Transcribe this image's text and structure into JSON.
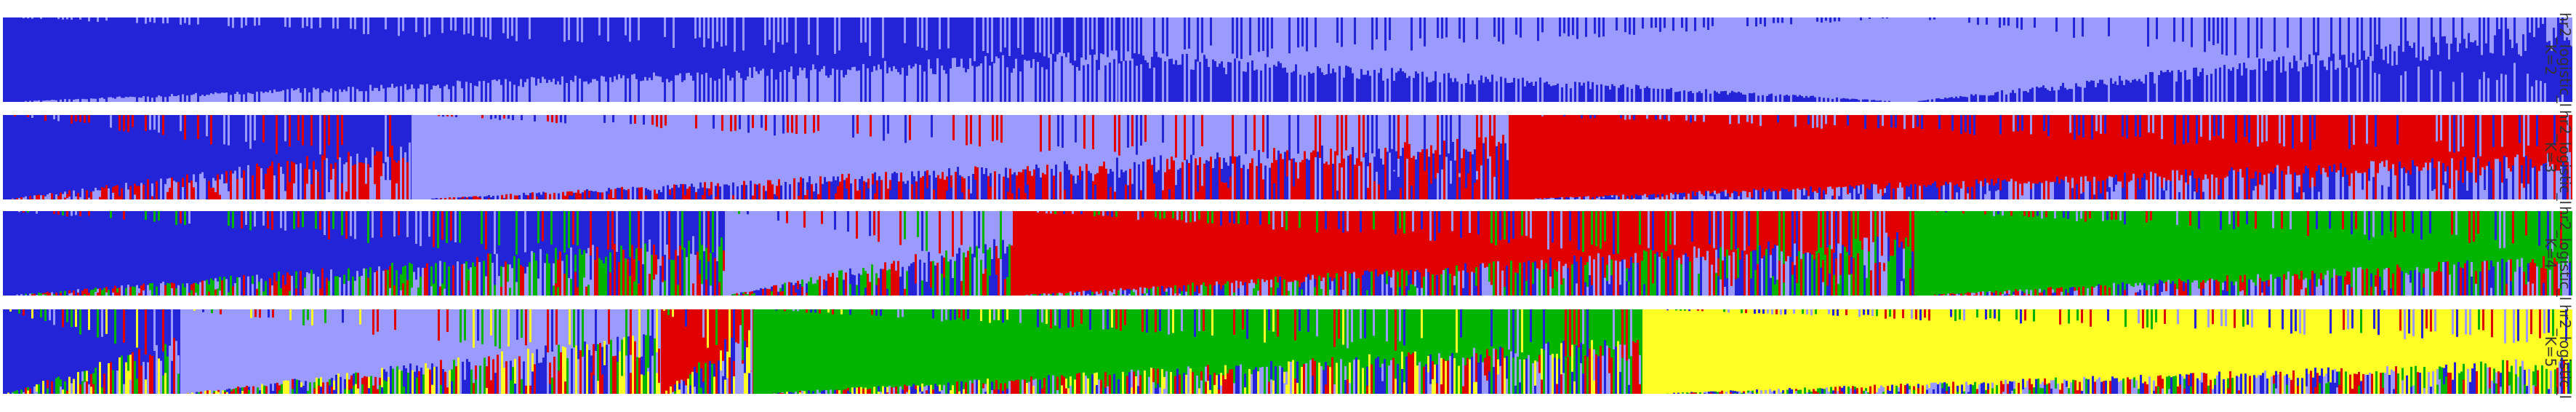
{
  "chart_data": [
    {
      "type": "structure-barplot",
      "label_lines": [
        "hr2_logistic_l",
        "K=2"
      ],
      "n_individuals": 3543,
      "cluster_colors": [
        "#2323d8",
        "#9a9aff"
      ],
      "sorted_blocks": [
        {
          "dominant": 0,
          "fraction": 0.434,
          "cross_start": 0.0,
          "cross_end": 0.5
        },
        {
          "dominant": 1,
          "fraction": 0.307,
          "cross_start": 0.5,
          "cross_end": 0.0
        },
        {
          "dominant": 1,
          "fraction": 0.259,
          "cross_start": 0.0,
          "cross_end": 0.78
        }
      ]
    },
    {
      "type": "structure-barplot",
      "label_lines": [
        "hr2_logistic_l",
        "K=3"
      ],
      "n_individuals": 3543,
      "cluster_colors": [
        "#2323d8",
        "#9a9aff",
        "#e00000"
      ],
      "sorted_blocks": [
        {
          "dominant": 0,
          "fraction": 0.159,
          "cross_start": 0.0,
          "cross_end": 0.55
        },
        {
          "dominant": 1,
          "fraction": 0.427,
          "cross_start": 0.0,
          "cross_end": 0.62
        },
        {
          "dominant": 2,
          "fraction": 0.414,
          "cross_start": 0.0,
          "cross_end": 0.45
        }
      ]
    },
    {
      "type": "structure-barplot",
      "label_lines": [
        "hr2_logistic_l",
        "K=4"
      ],
      "n_individuals": 3543,
      "cluster_colors": [
        "#2323d8",
        "#9a9aff",
        "#e00000",
        "#00b400"
      ],
      "sorted_blocks": [
        {
          "dominant": 0,
          "fraction": 0.281,
          "cross_start": 0.0,
          "cross_end": 0.6
        },
        {
          "dominant": 1,
          "fraction": 0.112,
          "cross_start": 0.0,
          "cross_end": 0.6
        },
        {
          "dominant": 2,
          "fraction": 0.351,
          "cross_start": 0.0,
          "cross_end": 0.62
        },
        {
          "dominant": 3,
          "fraction": 0.256,
          "cross_start": 0.0,
          "cross_end": 0.4
        }
      ]
    },
    {
      "type": "structure-barplot",
      "label_lines": [
        "hr2_logistic_l",
        "K=5"
      ],
      "n_individuals": 3543,
      "cluster_colors": [
        "#2323d8",
        "#9a9aff",
        "#e00000",
        "#00b400",
        "#ffff25"
      ],
      "sorted_blocks": [
        {
          "dominant": 0,
          "fraction": 0.069,
          "cross_start": 0.0,
          "cross_end": 0.55
        },
        {
          "dominant": 1,
          "fraction": 0.187,
          "cross_start": 0.0,
          "cross_end": 0.6
        },
        {
          "dominant": 2,
          "fraction": 0.036,
          "cross_start": 0.0,
          "cross_end": 0.75
        },
        {
          "dominant": 3,
          "fraction": 0.346,
          "cross_start": 0.0,
          "cross_end": 0.55
        },
        {
          "dominant": 4,
          "fraction": 0.362,
          "cross_start": 0.0,
          "cross_end": 0.35
        }
      ]
    }
  ]
}
